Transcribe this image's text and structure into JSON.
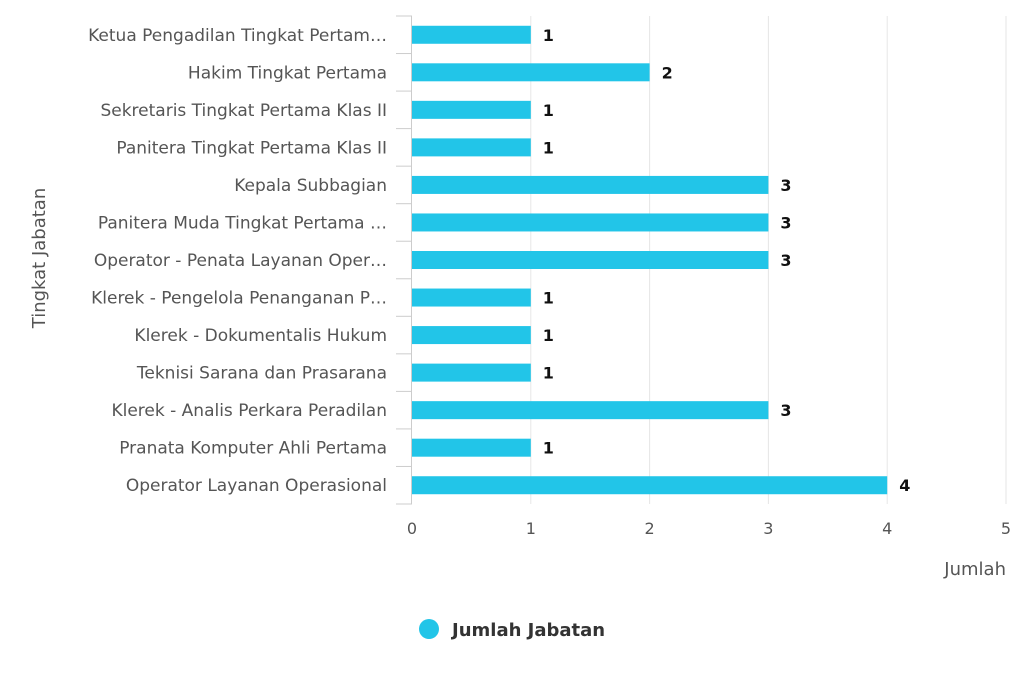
{
  "chart_data": {
    "type": "bar",
    "orientation": "horizontal",
    "categories": [
      "Ketua Pengadilan Tingkat Pertam…",
      "Hakim Tingkat Pertama",
      "Sekretaris Tingkat Pertama Klas II",
      "Panitera Tingkat Pertama Klas II",
      "Kepala Subbagian",
      "Panitera Muda Tingkat Pertama …",
      "Operator - Penata Layanan Oper…",
      "Klerek - Pengelola Penanganan P…",
      "Klerek - Dokumentalis Hukum",
      "Teknisi Sarana dan Prasarana",
      "Klerek - Analis Perkara Peradilan",
      "Pranata Komputer Ahli Pertama",
      "Operator Layanan Operasional"
    ],
    "series": [
      {
        "name": "Jumlah Jabatan",
        "values": [
          1,
          2,
          1,
          1,
          3,
          3,
          3,
          1,
          1,
          1,
          3,
          1,
          4
        ]
      }
    ],
    "xlabel": "Jumlah",
    "ylabel": "Tingkat Jabatan",
    "xlim": [
      0,
      5
    ],
    "xticks": [
      0,
      1,
      2,
      3,
      4,
      5
    ],
    "grid": true,
    "legend": "bottom-center",
    "color": "#22c5e8"
  }
}
